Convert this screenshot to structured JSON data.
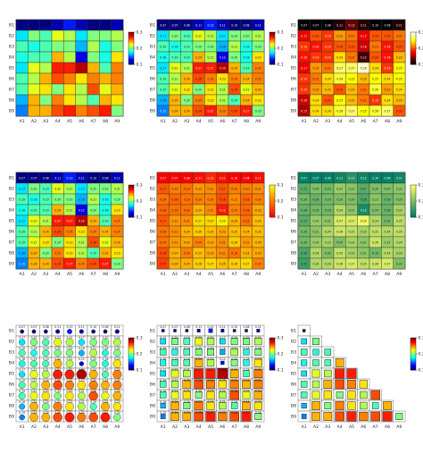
{
  "chart_data": [
    {
      "type": "heatmap",
      "style": "tiles",
      "colormap": "jet",
      "values_shown": false,
      "x_labels": [
        "A1",
        "A2",
        "A3",
        "A4",
        "A5",
        "A6",
        "A7",
        "A8",
        "A9"
      ],
      "y_labels": [
        "B1",
        "B2",
        "B3",
        "B4",
        "B5",
        "B6",
        "B7",
        "B8",
        "B9"
      ],
      "colorbar": {
        "ticks": [
          "0.3",
          "0.2",
          "0.1"
        ],
        "range": [
          0.1,
          0.3
        ]
      }
    },
    {
      "type": "heatmap",
      "style": "tiles",
      "colormap": "jet",
      "values_shown": true,
      "x_labels": [
        "A1",
        "A2",
        "A3",
        "A4",
        "A5",
        "A6",
        "A7",
        "A8",
        "A9"
      ],
      "y_labels": [
        "B1",
        "B2",
        "B3",
        "B4",
        "B5",
        "B6",
        "B7",
        "B8",
        "B9"
      ],
      "colorbar": {
        "ticks": [
          "0.3",
          "0.2",
          "0.1"
        ],
        "range": [
          0.1,
          0.3
        ]
      }
    },
    {
      "type": "heatmap",
      "style": "tiles",
      "colormap": "hot",
      "values_shown": true,
      "x_labels": [
        "A1",
        "A2",
        "A3",
        "A4",
        "A5",
        "A6",
        "A7",
        "A8",
        "A9"
      ],
      "y_labels": [
        "B1",
        "B2",
        "B3",
        "B4",
        "B5",
        "B6",
        "B7",
        "B8",
        "B9"
      ],
      "colorbar": {
        "ticks": [
          "0.3",
          "0.2",
          "0.1"
        ],
        "range": [
          0.1,
          0.3
        ]
      }
    },
    {
      "type": "heatmap",
      "style": "tiles",
      "colormap": "jet",
      "values_shown": true,
      "x_labels": [
        "A1",
        "A2",
        "A3",
        "A4",
        "A5",
        "A6",
        "A7",
        "A8",
        "A9"
      ],
      "y_labels": [
        "B1",
        "B2",
        "B3",
        "B4",
        "B5",
        "B6",
        "B7",
        "B8",
        "B9"
      ],
      "colorbar": {
        "ticks": [
          "0.3",
          "0.2",
          "0.1"
        ],
        "range": [
          0.1,
          0.3
        ]
      }
    },
    {
      "type": "heatmap",
      "style": "tiles",
      "colormap": "autumn",
      "values_shown": true,
      "x_labels": [
        "A1",
        "A2",
        "A3",
        "A4",
        "A5",
        "A6",
        "A7",
        "A8",
        "A9"
      ],
      "y_labels": [
        "B1",
        "B2",
        "B3",
        "B4",
        "B5",
        "B6",
        "B7",
        "B8",
        "B9"
      ],
      "colorbar": {
        "ticks": [
          "0.3",
          "0.2",
          "0.1"
        ],
        "range": [
          0.1,
          0.3
        ]
      }
    },
    {
      "type": "heatmap",
      "style": "tiles",
      "colormap": "summer",
      "values_shown": true,
      "x_labels": [
        "A1",
        "A2",
        "A3",
        "A4",
        "A5",
        "A6",
        "A7",
        "A8",
        "A9"
      ],
      "y_labels": [
        "B1",
        "B2",
        "B3",
        "B4",
        "B5",
        "B6",
        "B7",
        "B8",
        "B9"
      ],
      "colorbar": {
        "ticks": [
          "0.3",
          "0.2",
          "0.1"
        ],
        "range": [
          0.1,
          0.3
        ]
      }
    },
    {
      "type": "heatmap",
      "style": "pie-glyphs",
      "colormap": "jet",
      "values_shown": true,
      "x_labels": [
        "A1",
        "A2",
        "A3",
        "A4",
        "A5",
        "A6",
        "A7",
        "A8",
        "A9"
      ],
      "y_labels": [
        "B1",
        "B2",
        "B3",
        "B4",
        "B5",
        "B6",
        "B7",
        "B8",
        "B9"
      ],
      "colorbar": {
        "ticks": [
          "0.3",
          "0.2",
          "0.1"
        ],
        "range": [
          0.1,
          0.3
        ]
      }
    },
    {
      "type": "heatmap",
      "style": "sized-squares",
      "colormap": "jet",
      "values_shown": true,
      "x_labels": [
        "A1",
        "A2",
        "A3",
        "A4",
        "A5",
        "A6",
        "A7",
        "A8",
        "A9"
      ],
      "y_labels": [
        "B1",
        "B2",
        "B3",
        "B4",
        "B5",
        "B6",
        "B7",
        "B8",
        "B9"
      ],
      "colorbar": {
        "ticks": [
          "0.3",
          "0.2",
          "0.1"
        ],
        "range": [
          0.1,
          0.3
        ]
      }
    },
    {
      "type": "heatmap",
      "style": "sized-squares-lower-triangle",
      "colormap": "jet",
      "values_shown": false,
      "x_labels": [
        "A1",
        "A2",
        "A3",
        "A4",
        "A5",
        "A6",
        "A7",
        "A8",
        "A9"
      ],
      "y_labels": [
        "B1",
        "B2",
        "B3",
        "B4",
        "B5",
        "B6",
        "B7",
        "B8",
        "B9"
      ],
      "colorbar": {
        "ticks": [
          "0.3",
          "0.2",
          "0.1"
        ],
        "range": [
          0.1,
          0.3
        ]
      }
    }
  ],
  "matrix": [
    [
      0.07,
      0.07,
      0.08,
      0.11,
      0.13,
      0.11,
      0.1,
      0.08,
      0.11
    ],
    [
      0.17,
      0.2,
      0.19,
      0.22,
      0.21,
      0.17,
      0.2,
      0.2,
      0.21
    ],
    [
      0.19,
      0.18,
      0.19,
      0.2,
      0.2,
      0.16,
      0.21,
      0.18,
      0.2
    ],
    [
      0.18,
      0.19,
      0.19,
      0.24,
      0.21,
      0.12,
      0.2,
      0.18,
      0.23
    ],
    [
      0.17,
      0.22,
      0.21,
      0.27,
      0.27,
      0.29,
      0.24,
      0.19,
      0.25
    ],
    [
      0.19,
      0.21,
      0.24,
      0.26,
      0.25,
      0.23,
      0.25,
      0.24,
      0.25
    ],
    [
      0.19,
      0.22,
      0.23,
      0.2,
      0.23,
      0.21,
      0.26,
      0.22,
      0.24
    ],
    [
      0.16,
      0.24,
      0.2,
      0.25,
      0.23,
      0.21,
      0.19,
      0.24,
      0.23
    ],
    [
      0.15,
      0.24,
      0.24,
      0.26,
      0.27,
      0.25,
      0.26,
      0.27,
      0.2
    ]
  ]
}
